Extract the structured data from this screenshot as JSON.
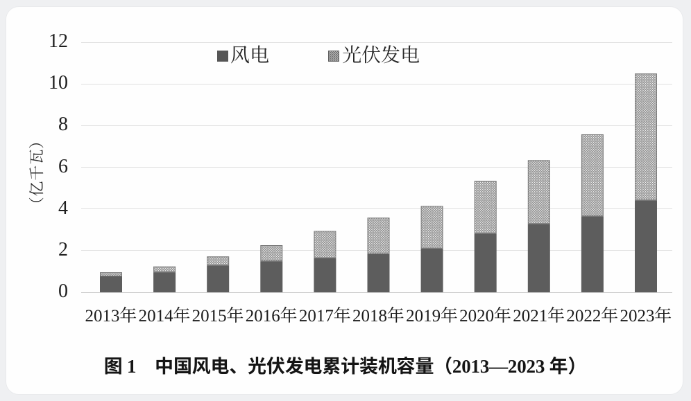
{
  "figure": {
    "caption": "图 1　中国风电、光伏发电累计装机容量（2013—2023 年）"
  },
  "chart_data": {
    "type": "bar",
    "stacked": true,
    "title": "图 1　中国风电、光伏发电累计装机容量（2013—2023 年）",
    "ylabel": "（亿千瓦）",
    "xlabel": "",
    "categories": [
      "2013年",
      "2014年",
      "2015年",
      "2016年",
      "2017年",
      "2018年",
      "2019年",
      "2020年",
      "2021年",
      "2022年",
      "2023年"
    ],
    "series": [
      {
        "name": "风电",
        "fill": "solid",
        "color": "#5d5d5d",
        "values": [
          0.77,
          0.96,
          1.29,
          1.49,
          1.64,
          1.84,
          2.1,
          2.82,
          3.28,
          3.65,
          4.41
        ]
      },
      {
        "name": "光伏发电",
        "fill": "diagonal-crosshatch",
        "color": "#8d8d8d",
        "values": [
          0.19,
          0.28,
          0.43,
          0.77,
          1.3,
          1.74,
          2.04,
          2.53,
          3.06,
          3.93,
          6.09
        ]
      }
    ],
    "totals": [
      0.96,
      1.24,
      1.72,
      2.26,
      2.94,
      3.58,
      4.14,
      5.35,
      6.34,
      7.58,
      10.5
    ],
    "ylim": [
      0,
      12
    ],
    "yticks": [
      0,
      2,
      4,
      6,
      8,
      10,
      12
    ],
    "grid": "horizontal",
    "legend_position": "top-center"
  }
}
